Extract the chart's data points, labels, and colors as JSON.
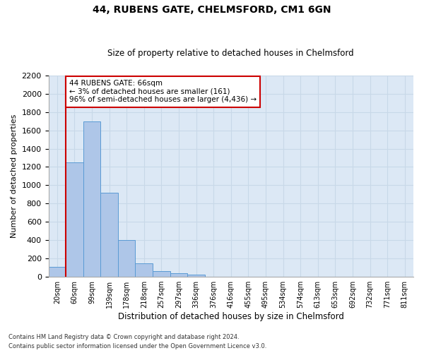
{
  "title1": "44, RUBENS GATE, CHELMSFORD, CM1 6GN",
  "title2": "Size of property relative to detached houses in Chelmsford",
  "xlabel": "Distribution of detached houses by size in Chelmsford",
  "ylabel": "Number of detached properties",
  "bin_labels": [
    "20sqm",
    "60sqm",
    "99sqm",
    "139sqm",
    "178sqm",
    "218sqm",
    "257sqm",
    "297sqm",
    "336sqm",
    "376sqm",
    "416sqm",
    "455sqm",
    "495sqm",
    "534sqm",
    "574sqm",
    "613sqm",
    "653sqm",
    "692sqm",
    "732sqm",
    "771sqm",
    "811sqm"
  ],
  "bar_values": [
    105,
    1250,
    1700,
    920,
    400,
    150,
    65,
    38,
    25,
    0,
    0,
    0,
    0,
    0,
    0,
    0,
    0,
    0,
    0,
    0,
    0
  ],
  "bar_color": "#aec6e8",
  "bar_edge_color": "#5a9bd4",
  "annotation_text": "44 RUBENS GATE: 66sqm\n← 3% of detached houses are smaller (161)\n96% of semi-detached houses are larger (4,436) →",
  "annotation_box_color": "#ffffff",
  "annotation_box_edge": "#cc0000",
  "vline_color": "#cc0000",
  "ylim": [
    0,
    2200
  ],
  "yticks": [
    0,
    200,
    400,
    600,
    800,
    1000,
    1200,
    1400,
    1600,
    1800,
    2000,
    2200
  ],
  "grid_color": "#c8d8e8",
  "bg_color": "#dce8f5",
  "footer1": "Contains HM Land Registry data © Crown copyright and database right 2024.",
  "footer2": "Contains public sector information licensed under the Open Government Licence v3.0."
}
